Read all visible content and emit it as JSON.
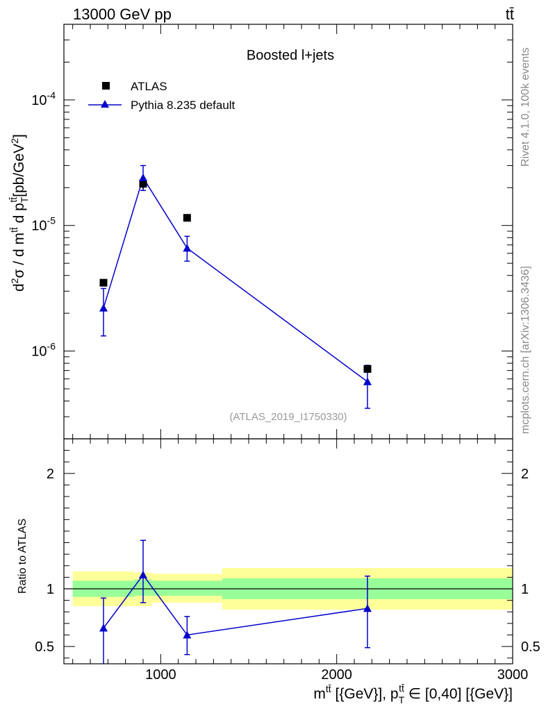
{
  "header": {
    "energy": "13000 GeV pp",
    "process": "tt̄"
  },
  "side": {
    "rivet": "Rivet 4.1.0,  100k events",
    "mcplots": "mcplots.cern.ch [arXiv:1306.3436]"
  },
  "chart_data": {
    "type": "scatter",
    "title": "Boosted l+jets",
    "analysis": "(ATLAS_2019_I1750330)",
    "xlabel": "m^{tt̄} [{GeV}], p_T^{tt̄} ∈ [0,40] [{GeV}]",
    "ylabel": "d²σ / d m^{tt̄} d p_T^{tt̄} [pb/GeV²]",
    "ratio_ylabel": "Ratio to ATLAS",
    "xlim": [
      450,
      3000
    ],
    "ylim": [
      2e-07,
      0.0004
    ],
    "yscale": "log",
    "ratio_ylim": [
      0.35,
      2.3
    ],
    "x_ticks": [
      "1000",
      "2000",
      "3000"
    ],
    "y_ticks": [
      "10^{-6}",
      "10^{-5}",
      "10^{-4}"
    ],
    "ratio_ticks": [
      "0.5",
      "1",
      "2"
    ],
    "bins": [
      [
        500,
        850
      ],
      [
        850,
        950
      ],
      [
        950,
        1350
      ],
      [
        1350,
        3000
      ]
    ],
    "series": [
      {
        "name": "ATLAS",
        "marker": "square",
        "x": [
          675,
          900,
          1150,
          2175
        ],
        "y": [
          3.5e-06,
          2.15e-05,
          1.15e-05,
          7.2e-07
        ],
        "err_lo": [
          1.5e-07,
          2e-06,
          4e-07,
          4e-08
        ],
        "err_hi": [
          1.5e-07,
          2e-06,
          4e-07,
          4e-08
        ]
      },
      {
        "name": "Pythia 8.235 default",
        "marker": "triangle",
        "color": "#0000cc",
        "x": [
          675,
          900,
          1150,
          2175
        ],
        "y": [
          2.2e-06,
          2.4e-05,
          6.6e-06,
          5.7e-07
        ],
        "err_lo": [
          8.8e-07,
          5e-06,
          1.4e-06,
          2.2e-07
        ],
        "err_hi": [
          9.5e-07,
          6e-06,
          1.6e-06,
          2e-07
        ]
      }
    ],
    "ratio": {
      "values": [
        0.66,
        1.12,
        0.6,
        0.83
      ],
      "err_lo": [
        0.33,
        0.24,
        0.17,
        0.34
      ],
      "err_hi": [
        0.26,
        0.3,
        0.16,
        0.28
      ],
      "band_inner": [
        [
          0.93,
          1.07
        ],
        [
          0.94,
          1.08
        ],
        [
          0.94,
          1.07
        ],
        [
          0.91,
          1.09
        ]
      ],
      "band_outer": [
        [
          0.85,
          1.15
        ],
        [
          0.85,
          1.14
        ],
        [
          0.88,
          1.13
        ],
        [
          0.82,
          1.18
        ]
      ]
    },
    "colors": {
      "inner_band": "#99ff99",
      "outer_band": "#ffff99",
      "mc": "#0000cc",
      "data": "#000000"
    }
  }
}
